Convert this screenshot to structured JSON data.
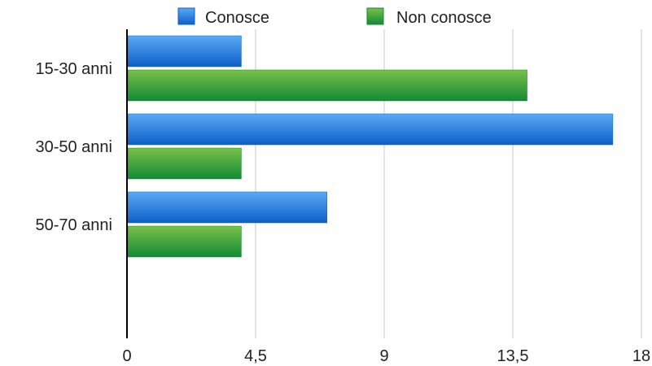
{
  "chart_data": {
    "type": "bar",
    "orientation": "horizontal",
    "categories": [
      "15-30 anni",
      "30-50 anni",
      "50-70 anni"
    ],
    "series": [
      {
        "name": "Conosce",
        "values": [
          4,
          17,
          7
        ],
        "color": "#1a6fd8"
      },
      {
        "name": "Non conosce",
        "values": [
          14,
          4,
          4
        ],
        "color": "#1f9a3a"
      }
    ],
    "xlim": [
      0,
      18
    ],
    "xticks": [
      "0",
      "4,5",
      "9",
      "13,5",
      "18"
    ],
    "grid": "vertical",
    "legend_position": "top"
  }
}
